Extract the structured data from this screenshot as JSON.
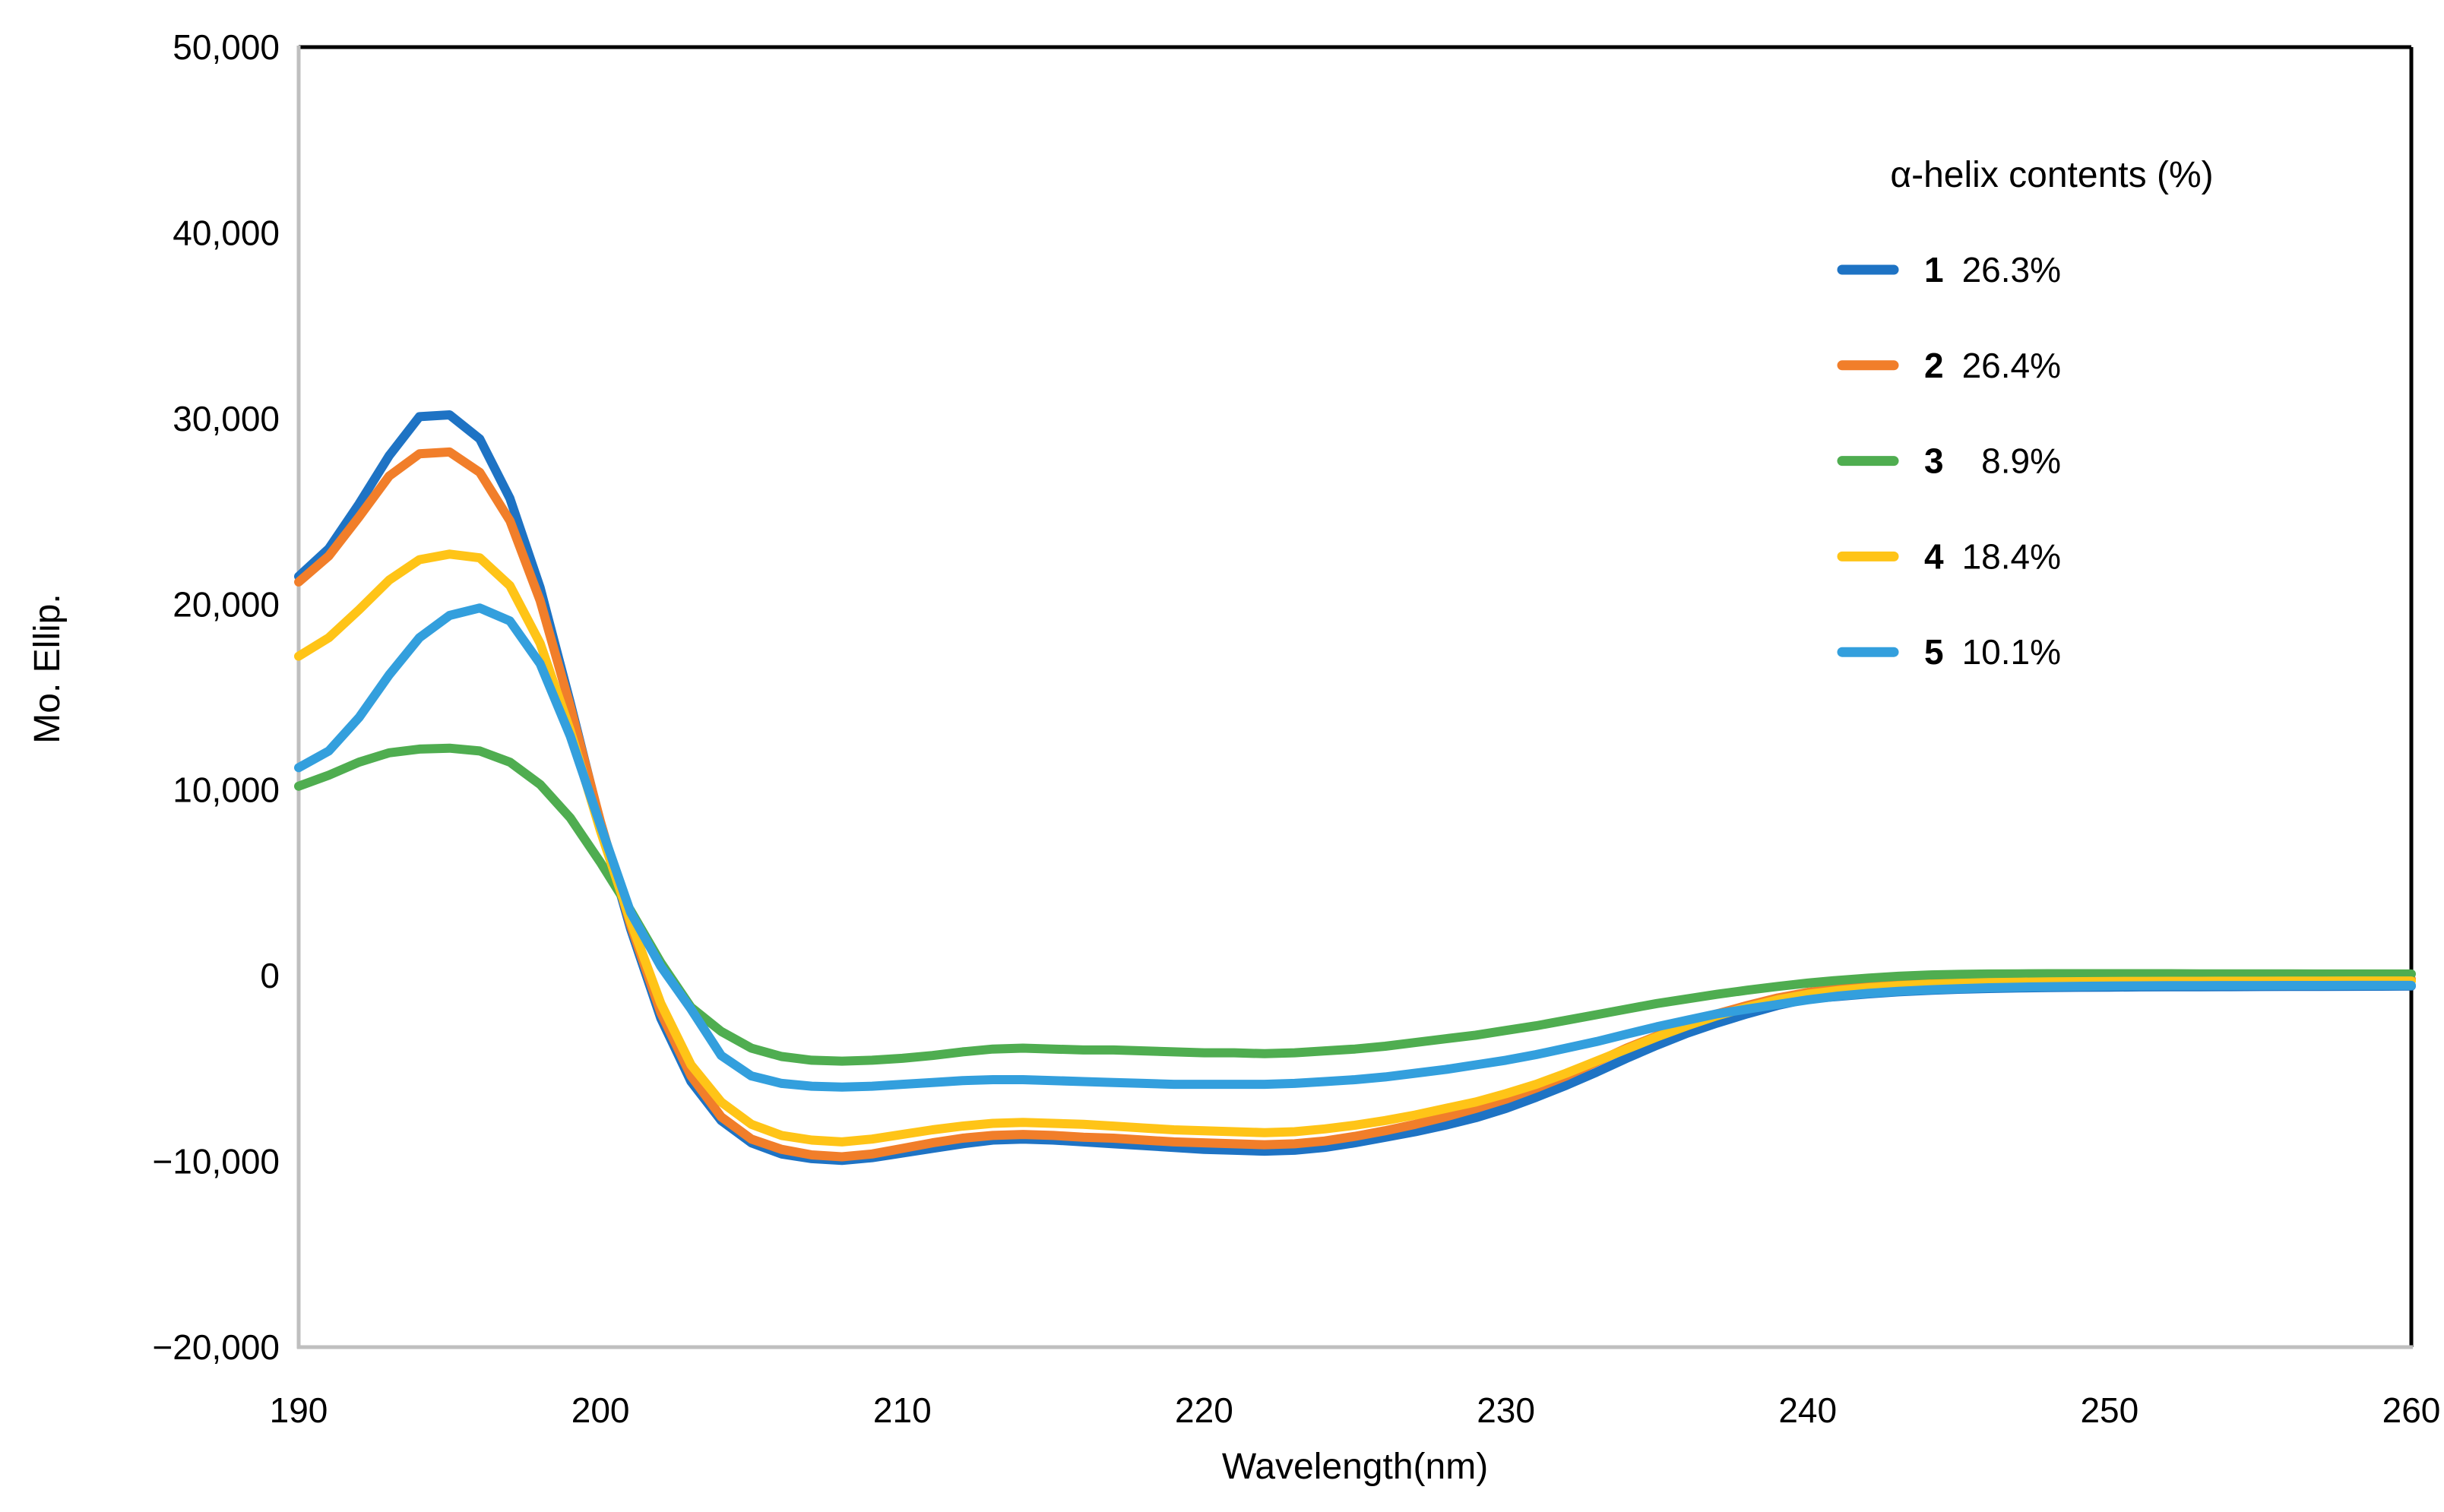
{
  "chart_data": {
    "type": "line",
    "title": "",
    "xlabel": "Wavelength(nm)",
    "ylabel": "Mo. Ellip.",
    "xlim": [
      190,
      260
    ],
    "ylim": [
      -20000,
      50000
    ],
    "grid": false,
    "x_ticks": [
      {
        "label": "190",
        "value": 190
      },
      {
        "label": "200",
        "value": 200
      },
      {
        "label": "210",
        "value": 210
      },
      {
        "label": "220",
        "value": 220
      },
      {
        "label": "230",
        "value": 230
      },
      {
        "label": "240",
        "value": 240
      },
      {
        "label": "250",
        "value": 250
      },
      {
        "label": "260",
        "value": 260
      }
    ],
    "y_ticks": [
      {
        "label": "50,000",
        "value": 50000
      },
      {
        "label": "40,000",
        "value": 40000
      },
      {
        "label": "30,000",
        "value": 30000
      },
      {
        "label": "20,000",
        "value": 20000
      },
      {
        "label": "10,000",
        "value": 10000
      },
      {
        "label": "0",
        "value": 0
      },
      {
        "label": "−10,000",
        "value": -10000
      },
      {
        "label": "−20,000",
        "value": -20000
      }
    ],
    "legend": {
      "title": "α-helix contents (%)",
      "position": "top-right"
    },
    "x_start": 190,
    "x_step": 1,
    "series": [
      {
        "name": "1",
        "helix_content": "26.3%",
        "color": "#1E73C4",
        "values": [
          21500,
          23000,
          25400,
          28000,
          30100,
          30200,
          28900,
          25700,
          20900,
          14700,
          8200,
          2500,
          -2300,
          -5700,
          -7800,
          -9000,
          -9600,
          -9850,
          -9950,
          -9800,
          -9550,
          -9300,
          -9050,
          -8850,
          -8800,
          -8850,
          -8950,
          -9050,
          -9150,
          -9250,
          -9350,
          -9400,
          -9450,
          -9400,
          -9250,
          -9000,
          -8700,
          -8400,
          -8050,
          -7650,
          -7150,
          -6550,
          -5900,
          -5200,
          -4450,
          -3750,
          -3100,
          -2550,
          -2050,
          -1600,
          -1250,
          -1120,
          -980,
          -870,
          -790,
          -730,
          -690,
          -660,
          -640,
          -625,
          -615,
          -605,
          -600,
          -595,
          -590,
          -585,
          -580,
          -575,
          -570,
          -565,
          -560
        ]
      },
      {
        "name": "2",
        "helix_content": "26.4%",
        "color": "#F17E2A",
        "values": [
          21200,
          22600,
          24700,
          26900,
          28100,
          28200,
          27100,
          24500,
          20200,
          14500,
          8300,
          2700,
          -2000,
          -5400,
          -7600,
          -8800,
          -9350,
          -9650,
          -9750,
          -9600,
          -9300,
          -9000,
          -8750,
          -8600,
          -8550,
          -8600,
          -8700,
          -8750,
          -8850,
          -8950,
          -9000,
          -9050,
          -9100,
          -9050,
          -8900,
          -8650,
          -8350,
          -8000,
          -7600,
          -7150,
          -6650,
          -6050,
          -5400,
          -4650,
          -3900,
          -3250,
          -2600,
          -2050,
          -1600,
          -1200,
          -900,
          -700,
          -550,
          -440,
          -370,
          -320,
          -280,
          -250,
          -230,
          -220,
          -210,
          -205,
          -200,
          -200,
          -195,
          -195,
          -190,
          -190,
          -190,
          -185,
          -185
        ]
      },
      {
        "name": "3",
        "helix_content": "8.9%",
        "color": "#4FAD50",
        "values": [
          10200,
          10800,
          11500,
          12000,
          12200,
          12250,
          12100,
          11500,
          10300,
          8500,
          6100,
          3500,
          700,
          -1700,
          -3000,
          -3900,
          -4350,
          -4550,
          -4600,
          -4550,
          -4450,
          -4300,
          -4100,
          -3950,
          -3900,
          -3950,
          -4000,
          -4000,
          -4050,
          -4100,
          -4150,
          -4150,
          -4200,
          -4150,
          -4050,
          -3950,
          -3800,
          -3600,
          -3400,
          -3200,
          -2950,
          -2700,
          -2400,
          -2100,
          -1800,
          -1500,
          -1250,
          -1000,
          -780,
          -580,
          -400,
          -250,
          -130,
          -30,
          40,
          70,
          90,
          100,
          110,
          110,
          110,
          110,
          110,
          100,
          100,
          100,
          100,
          90,
          90,
          90,
          90
        ]
      },
      {
        "name": "4",
        "helix_content": "18.4%",
        "color": "#FFC417",
        "values": [
          17200,
          18200,
          19700,
          21300,
          22400,
          22700,
          22500,
          21000,
          17900,
          13200,
          7800,
          2900,
          -1500,
          -4800,
          -6800,
          -8000,
          -8600,
          -8850,
          -8950,
          -8800,
          -8550,
          -8300,
          -8100,
          -7950,
          -7900,
          -7950,
          -8000,
          -8100,
          -8200,
          -8300,
          -8350,
          -8400,
          -8450,
          -8400,
          -8250,
          -8050,
          -7800,
          -7500,
          -7150,
          -6800,
          -6350,
          -5850,
          -5250,
          -4600,
          -3950,
          -3300,
          -2700,
          -2150,
          -1700,
          -1300,
          -1000,
          -800,
          -650,
          -540,
          -460,
          -410,
          -370,
          -350,
          -330,
          -320,
          -310,
          -305,
          -300,
          -300,
          -295,
          -295,
          -290,
          -290,
          -285,
          -285,
          -285
        ]
      },
      {
        "name": "5",
        "helix_content": "10.1%",
        "color": "#339FDD",
        "values": [
          11200,
          12100,
          13900,
          16200,
          18200,
          19400,
          19800,
          19100,
          16800,
          12900,
          8100,
          3400,
          500,
          -1800,
          -4300,
          -5400,
          -5800,
          -5950,
          -6000,
          -5950,
          -5850,
          -5750,
          -5650,
          -5600,
          -5600,
          -5650,
          -5700,
          -5750,
          -5800,
          -5850,
          -5850,
          -5850,
          -5850,
          -5800,
          -5700,
          -5600,
          -5450,
          -5250,
          -5050,
          -4800,
          -4550,
          -4250,
          -3900,
          -3550,
          -3150,
          -2750,
          -2400,
          -2050,
          -1800,
          -1550,
          -1300,
          -1100,
          -950,
          -840,
          -760,
          -700,
          -650,
          -615,
          -590,
          -570,
          -555,
          -545,
          -540,
          -535,
          -530,
          -530,
          -525,
          -525,
          -520,
          -520,
          -520
        ]
      }
    ],
    "colors": {
      "axis_line": "#BFBFBF",
      "plot_border": "#000000",
      "text": "#000000",
      "background": "#FFFFFF"
    }
  }
}
